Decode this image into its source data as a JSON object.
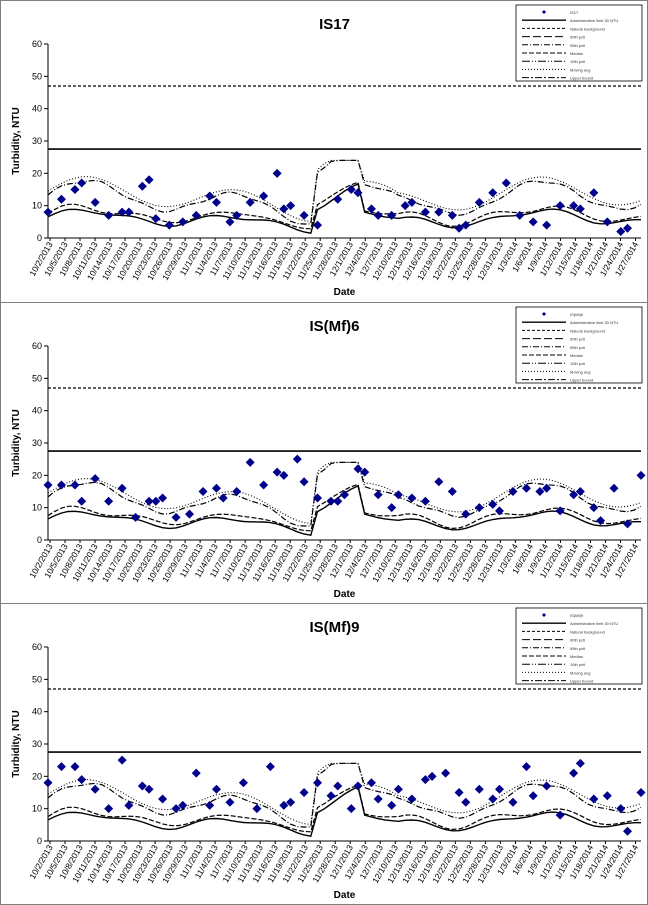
{
  "shared": {
    "xlabel": "Date",
    "ylabel": "Turbidity, NTU",
    "ylim": [
      0,
      60
    ],
    "y_ticks": [
      "0",
      "10",
      "20",
      "30",
      "40",
      "50",
      "60"
    ],
    "x_tick_labels": [
      "10/2/2013",
      "10/5/2013",
      "10/8/2013",
      "10/11/2013",
      "10/14/2013",
      "10/17/2013",
      "10/20/2013",
      "10/23/2013",
      "10/26/2013",
      "10/29/2013",
      "11/1/2013",
      "11/4/2013",
      "11/7/2013",
      "11/10/2013",
      "11/13/2013",
      "11/16/2013",
      "11/19/2013",
      "11/22/2013",
      "11/25/2013",
      "11/28/2013",
      "12/1/2013",
      "12/4/2013",
      "12/7/2013",
      "12/10/2013",
      "12/13/2013",
      "12/16/2013",
      "12/19/2013",
      "12/22/2013",
      "12/25/2013",
      "12/28/2013",
      "12/31/2013",
      "1/3/2014",
      "1/6/2014",
      "1/9/2014",
      "1/12/2014",
      "1/15/2014",
      "1/18/2014",
      "1/21/2014",
      "1/24/2014",
      "1/27/2014"
    ],
    "benchmark_high": 47,
    "benchmark_low": 27.5,
    "colors": {
      "marker": "#00008B",
      "line": "#000000",
      "grid": "#ffffff"
    }
  },
  "chart_data": [
    {
      "type": "line",
      "title": "IS17",
      "legend_position": "top-right",
      "legend": [
        "IS17",
        "Administrative limit 30 NTU",
        "Natural background",
        "90th pctl",
        "95th pctl",
        "Median",
        "10th pctl",
        "Moving avg",
        "Upper bound"
      ],
      "points": [
        [
          0,
          8
        ],
        [
          2,
          12
        ],
        [
          4,
          15
        ],
        [
          5,
          17
        ],
        [
          7,
          11
        ],
        [
          9,
          7
        ],
        [
          11,
          8
        ],
        [
          12,
          8
        ],
        [
          14,
          16
        ],
        [
          15,
          18
        ],
        [
          16,
          6
        ],
        [
          18,
          4
        ],
        [
          20,
          5
        ],
        [
          22,
          7
        ],
        [
          24,
          13
        ],
        [
          25,
          11
        ],
        [
          27,
          5
        ],
        [
          28,
          7
        ],
        [
          30,
          11
        ],
        [
          32,
          13
        ],
        [
          34,
          20
        ],
        [
          35,
          9
        ],
        [
          36,
          10
        ],
        [
          38,
          7
        ],
        [
          40,
          4
        ],
        [
          43,
          12
        ],
        [
          45,
          15
        ],
        [
          46,
          14
        ],
        [
          48,
          9
        ],
        [
          49,
          7
        ],
        [
          51,
          7
        ],
        [
          53,
          10
        ],
        [
          54,
          11
        ],
        [
          56,
          8
        ],
        [
          58,
          8
        ],
        [
          60,
          7
        ],
        [
          61,
          3
        ],
        [
          62,
          4
        ],
        [
          64,
          11
        ],
        [
          66,
          14
        ],
        [
          68,
          17
        ],
        [
          70,
          7
        ],
        [
          72,
          5
        ],
        [
          74,
          4
        ],
        [
          76,
          10
        ],
        [
          78,
          10
        ],
        [
          79,
          9
        ],
        [
          81,
          14
        ],
        [
          83,
          5
        ],
        [
          85,
          2
        ],
        [
          86,
          3
        ]
      ],
      "ranges": {
        "upper": [
          14,
          16,
          15,
          18,
          15,
          10,
          8,
          7,
          6,
          8,
          9,
          10,
          13,
          17,
          9,
          9,
          12,
          13,
          11,
          9,
          8,
          13,
          10,
          8,
          9,
          11,
          12,
          13,
          14,
          11,
          9,
          6,
          5,
          7,
          6,
          9,
          12,
          15,
          16,
          14,
          10,
          5,
          7,
          7,
          6,
          7,
          13,
          15,
          17,
          21,
          24,
          18,
          13,
          11,
          9,
          7,
          6,
          8,
          10,
          12,
          9,
          8,
          7,
          6,
          5,
          4,
          5,
          8,
          13,
          14,
          13,
          12,
          15,
          14,
          10,
          6,
          4,
          4,
          5,
          9,
          12,
          15,
          13,
          9,
          8,
          7,
          4,
          3,
          3
        ]
      }
    },
    {
      "type": "line",
      "title": "IS(Mf)6",
      "legend_position": "top-right",
      "legend": [
        "IS(Mf)6",
        "Administrative limit 30 NTU",
        "Natural background",
        "90th pctl",
        "95th pctl",
        "Median",
        "10th pctl",
        "Moving avg",
        "Upper bound"
      ],
      "points": [
        [
          0,
          17
        ],
        [
          2,
          17
        ],
        [
          4,
          17
        ],
        [
          5,
          12
        ],
        [
          7,
          19
        ],
        [
          9,
          12
        ],
        [
          11,
          16
        ],
        [
          13,
          7
        ],
        [
          15,
          12
        ],
        [
          16,
          12
        ],
        [
          17,
          13
        ],
        [
          19,
          7
        ],
        [
          21,
          8
        ],
        [
          23,
          15
        ],
        [
          25,
          16
        ],
        [
          26,
          13
        ],
        [
          28,
          15
        ],
        [
          30,
          24
        ],
        [
          32,
          17
        ],
        [
          34,
          21
        ],
        [
          35,
          20
        ],
        [
          37,
          25
        ],
        [
          38,
          18
        ],
        [
          40,
          13
        ],
        [
          42,
          12
        ],
        [
          43,
          12
        ],
        [
          44,
          14
        ],
        [
          46,
          22
        ],
        [
          47,
          21
        ],
        [
          49,
          14
        ],
        [
          51,
          10
        ],
        [
          52,
          14
        ],
        [
          54,
          13
        ],
        [
          56,
          12
        ],
        [
          58,
          18
        ],
        [
          60,
          15
        ],
        [
          62,
          8
        ],
        [
          64,
          10
        ],
        [
          66,
          11
        ],
        [
          67,
          9
        ],
        [
          69,
          15
        ],
        [
          71,
          16
        ],
        [
          73,
          15
        ],
        [
          74,
          16
        ],
        [
          76,
          9
        ],
        [
          78,
          14
        ],
        [
          79,
          15
        ],
        [
          81,
          10
        ],
        [
          82,
          6
        ],
        [
          84,
          16
        ],
        [
          86,
          5
        ],
        [
          88,
          20
        ]
      ]
    },
    {
      "type": "line",
      "title": "IS(Mf)9",
      "legend_position": "top-right",
      "legend": [
        "IS(Mf)9",
        "Administrative limit 30 NTU",
        "Natural background",
        "90th pctl",
        "95th pctl",
        "Median",
        "10th pctl",
        "Moving avg",
        "Upper bound"
      ],
      "points": [
        [
          0,
          18
        ],
        [
          2,
          23
        ],
        [
          4,
          23
        ],
        [
          5,
          19
        ],
        [
          7,
          16
        ],
        [
          9,
          10
        ],
        [
          11,
          25
        ],
        [
          12,
          11
        ],
        [
          14,
          17
        ],
        [
          15,
          16
        ],
        [
          17,
          13
        ],
        [
          19,
          10
        ],
        [
          20,
          11
        ],
        [
          22,
          21
        ],
        [
          24,
          11
        ],
        [
          25,
          16
        ],
        [
          27,
          12
        ],
        [
          29,
          18
        ],
        [
          31,
          10
        ],
        [
          33,
          23
        ],
        [
          35,
          11
        ],
        [
          36,
          12
        ],
        [
          38,
          15
        ],
        [
          40,
          18
        ],
        [
          42,
          14
        ],
        [
          43,
          17
        ],
        [
          45,
          10
        ],
        [
          46,
          17
        ],
        [
          48,
          18
        ],
        [
          49,
          13
        ],
        [
          51,
          11
        ],
        [
          52,
          16
        ],
        [
          54,
          13
        ],
        [
          56,
          19
        ],
        [
          57,
          20
        ],
        [
          59,
          21
        ],
        [
          61,
          15
        ],
        [
          62,
          12
        ],
        [
          64,
          16
        ],
        [
          66,
          13
        ],
        [
          67,
          16
        ],
        [
          69,
          12
        ],
        [
          71,
          23
        ],
        [
          72,
          14
        ],
        [
          74,
          17
        ],
        [
          76,
          8
        ],
        [
          78,
          21
        ],
        [
          79,
          24
        ],
        [
          81,
          13
        ],
        [
          83,
          14
        ],
        [
          85,
          10
        ],
        [
          86,
          3
        ],
        [
          88,
          15
        ]
      ]
    }
  ]
}
